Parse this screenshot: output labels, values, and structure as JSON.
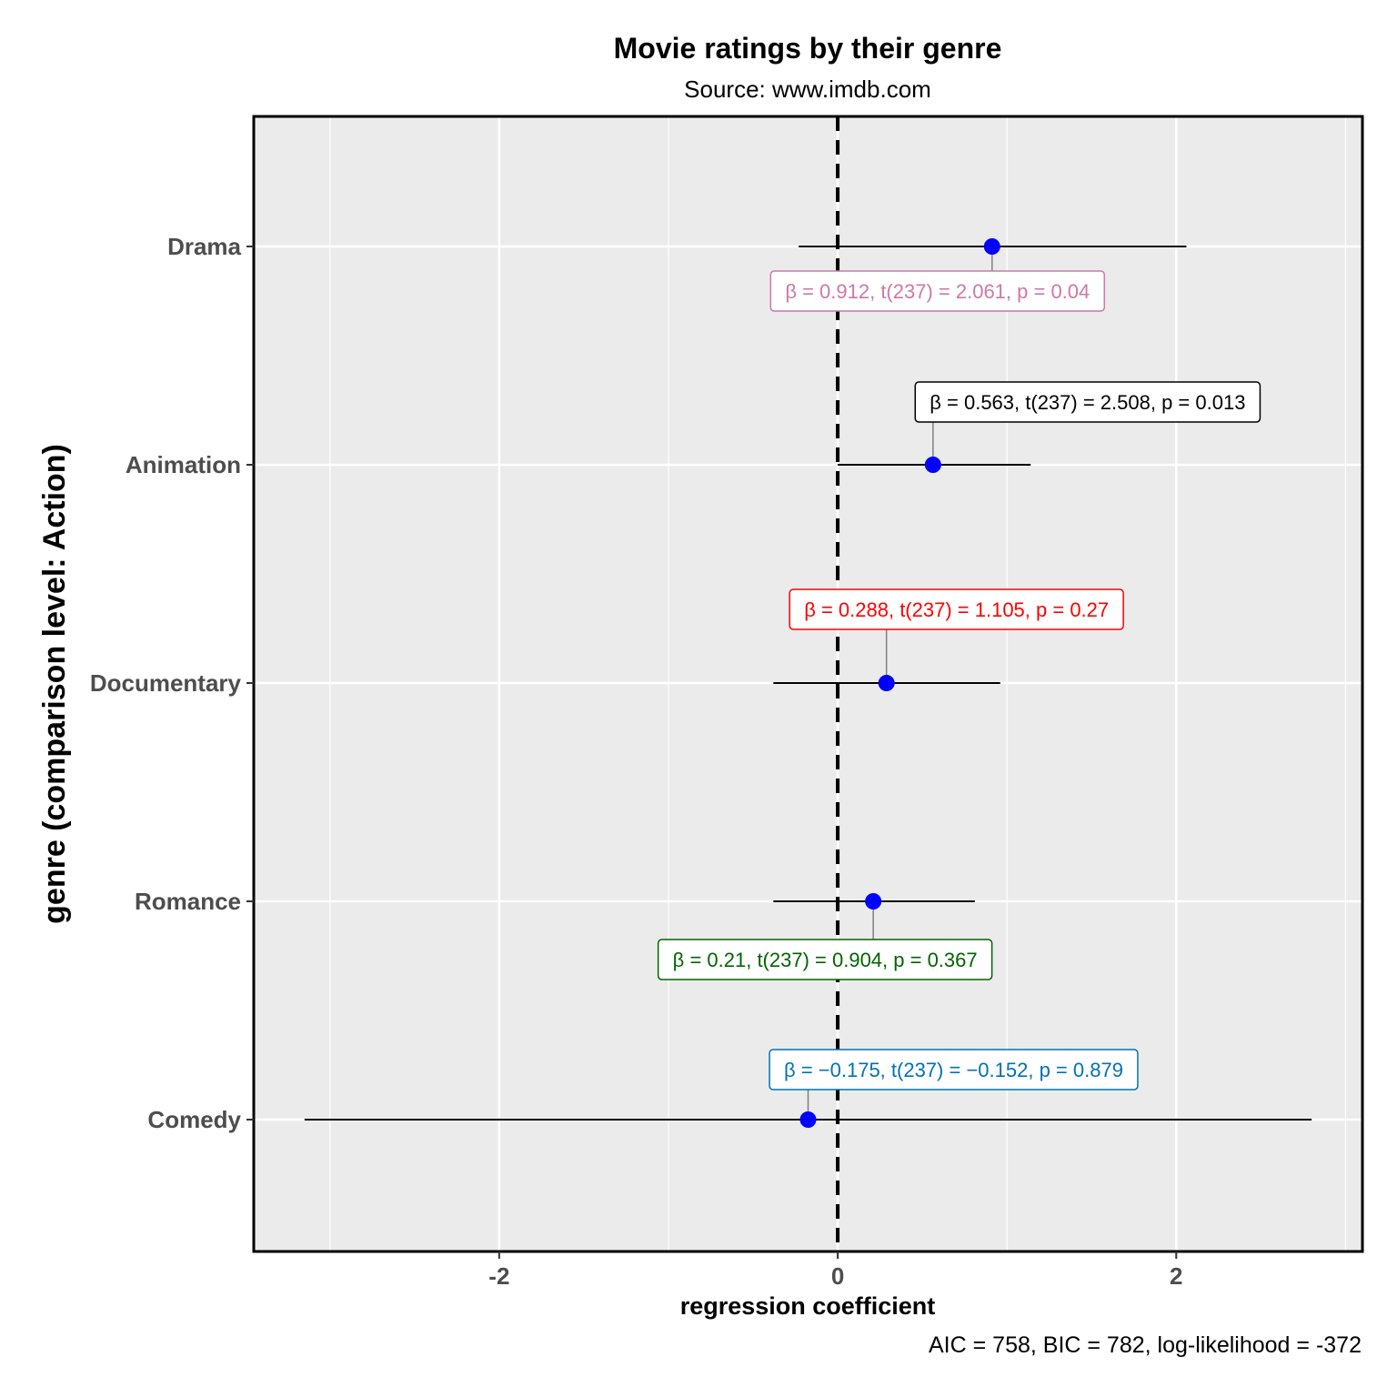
{
  "chart_data": {
    "type": "scatter",
    "title": "Movie ratings by their genre",
    "subtitle": "Source: www.imdb.com",
    "xlabel": "regression coefficient",
    "ylabel": "genre (comparison level: Action)",
    "caption": "AIC = 758, BIC = 782, log-likelihood = -372",
    "xlim": [
      -3.45,
      3.1
    ],
    "x_ticks": [
      -2,
      0,
      2
    ],
    "x_tick_labels": [
      "-2",
      "0",
      "2"
    ],
    "reference_line": 0,
    "grid": true,
    "point_color": "#0000ff",
    "categories": [
      "Drama",
      "Animation",
      "Documentary",
      "Romance",
      "Comedy"
    ],
    "estimates": [
      {
        "term": "Drama",
        "estimate": 0.912,
        "conf_low": -0.23,
        "conf_high": 2.06,
        "label": "β = 0.912,  t(237) = 2.061,  p = 0.04",
        "color": "#cc79a7"
      },
      {
        "term": "Animation",
        "estimate": 0.563,
        "conf_low": 0.0,
        "conf_high": 1.14,
        "label": "β = 0.563,  t(237) = 2.508,  p = 0.013",
        "color": "#000000"
      },
      {
        "term": "Documentary",
        "estimate": 0.288,
        "conf_low": -0.38,
        "conf_high": 0.96,
        "label": "β = 0.288,  t(237) = 1.105,  p = 0.27",
        "color": "#ff0000"
      },
      {
        "term": "Romance",
        "estimate": 0.21,
        "conf_low": -0.38,
        "conf_high": 0.81,
        "label": "β = 0.21,  t(237) = 0.904,  p = 0.367",
        "color": "#006400"
      },
      {
        "term": "Comedy",
        "estimate": -0.175,
        "conf_low": -3.15,
        "conf_high": 2.8,
        "label": "β = −0.175,  t(237) = −0.152,  p = 0.879",
        "color": "#0072b2"
      }
    ]
  }
}
